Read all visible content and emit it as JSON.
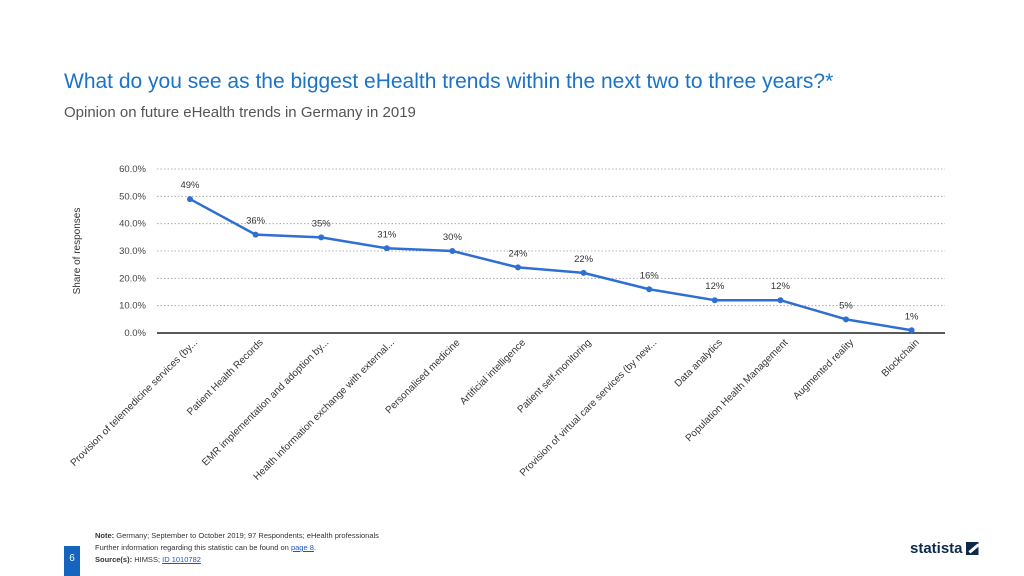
{
  "header": {
    "title": "What do you see as the biggest eHealth trends within the next two to three years?*",
    "subtitle": "Opinion on future eHealth trends in Germany in 2019"
  },
  "chart_data": {
    "type": "line",
    "title": "What do you see as the biggest eHealth trends within the next two to three years?*",
    "ylabel": "Share of responses",
    "xlabel": "",
    "ylim": [
      0,
      60
    ],
    "yticks": [
      "0.0%",
      "10.0%",
      "20.0%",
      "30.0%",
      "40.0%",
      "50.0%",
      "60.0%"
    ],
    "grid": true,
    "categories": [
      "Provision of telemedicine services (by...",
      "Patient Health Records",
      "EMR implementation and adoption by...",
      "Health information exchange with external...",
      "Personalised medicine",
      "Artificial intelligence",
      "Patient self-monitoring",
      "Provision of virtual care services (by new...",
      "Data analytics",
      "Population Health Management",
      "Augmented reality",
      "Blockchain"
    ],
    "values": [
      49,
      36,
      35,
      31,
      30,
      24,
      22,
      16,
      12,
      12,
      5,
      1
    ],
    "data_labels": [
      "49%",
      "36%",
      "35%",
      "31%",
      "30%",
      "24%",
      "22%",
      "16%",
      "12%",
      "12%",
      "5%",
      "1%"
    ],
    "color": "#2f6fd4"
  },
  "footer": {
    "note_label": "Note:",
    "note_text": "Germany; September to October 2019; 97 Respondents; eHealth professionals",
    "further_text": "Further information regarding this statistic can be found on",
    "further_link": "page 8",
    "further_end": ".",
    "source_label": "Source(s):",
    "source_text": "HIMSS;",
    "source_link": "ID 1010782",
    "page_number": "6",
    "brand": "statista"
  }
}
